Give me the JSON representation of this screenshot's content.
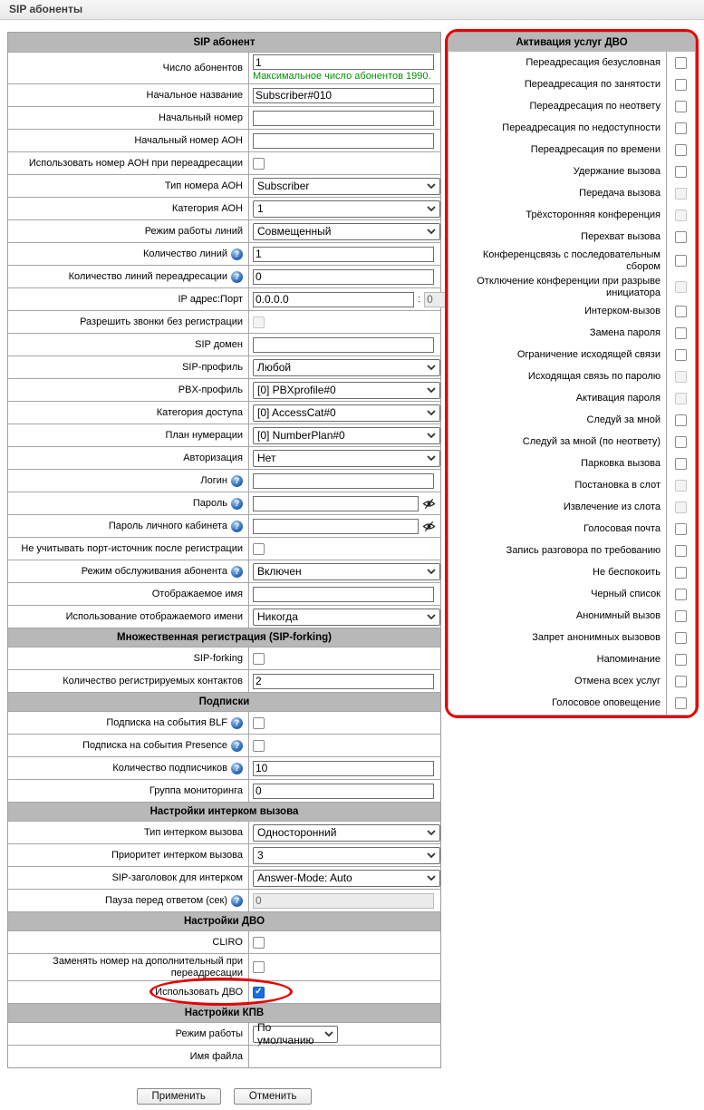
{
  "page_title": "SIP абоненты",
  "colors": {
    "section_header_bg": "#b8b8b8",
    "highlight_red": "#e60000",
    "checkbox_checked_blue": "#1b6ce0",
    "note_green": "#009000"
  },
  "icons": {
    "help_icon": "blue circle with question mark",
    "eye_slash_icon": "eye with slash (password visibility)",
    "chevron_down_icon": "select dropdown arrow"
  },
  "left_panel": {
    "rows": [
      {
        "kind": "section",
        "label": "SIP абонент"
      },
      {
        "kind": "row",
        "label": "Число абонентов",
        "control": "text",
        "value": "1",
        "note": "Максимальное число абонентов 1990."
      },
      {
        "kind": "row",
        "label": "Начальное название",
        "control": "text",
        "value": "Subscriber#010"
      },
      {
        "kind": "row",
        "label": "Начальный номер",
        "control": "text",
        "value": ""
      },
      {
        "kind": "row",
        "label": "Начальный номер АОН",
        "control": "text",
        "value": ""
      },
      {
        "kind": "row",
        "label": "Использовать номер АОН при переадресации",
        "control": "checkbox",
        "checked": false
      },
      {
        "kind": "row",
        "label": "Тип номера АОН",
        "control": "select",
        "value": "Subscriber"
      },
      {
        "kind": "row",
        "label": "Категория АОН",
        "control": "select",
        "value": "1"
      },
      {
        "kind": "row",
        "label": "Режим работы линий",
        "control": "select",
        "value": "Совмещенный"
      },
      {
        "kind": "row",
        "label": "Количество линий",
        "help": true,
        "control": "text",
        "value": "1"
      },
      {
        "kind": "row",
        "label": "Количество линий переадресации",
        "help": true,
        "control": "text",
        "value": "0"
      },
      {
        "kind": "row",
        "label": "IP адрес:Порт",
        "control": "ip",
        "value": "0.0.0.0",
        "separator": ":",
        "port": "0"
      },
      {
        "kind": "row",
        "label": "Разрешить звонки без регистрации",
        "control": "checkbox",
        "checked": false,
        "disabled": true
      },
      {
        "kind": "row",
        "label": "SIP домен",
        "control": "text",
        "value": ""
      },
      {
        "kind": "row",
        "label": "SIP-профиль",
        "control": "select",
        "value": "Любой"
      },
      {
        "kind": "row",
        "label": "PBX-профиль",
        "control": "select",
        "value": "[0] PBXprofile#0"
      },
      {
        "kind": "row",
        "label": "Категория доступа",
        "control": "select",
        "value": "[0] AccessCat#0"
      },
      {
        "kind": "row",
        "label": "План нумерации",
        "control": "select",
        "value": "[0] NumberPlan#0"
      },
      {
        "kind": "row",
        "label": "Авторизация",
        "control": "select",
        "value": "Нет"
      },
      {
        "kind": "row",
        "label": "Логин",
        "help": true,
        "control": "text",
        "value": ""
      },
      {
        "kind": "row",
        "label": "Пароль",
        "help": true,
        "control": "password",
        "value": ""
      },
      {
        "kind": "row",
        "label": "Пароль личного кабинета",
        "help": true,
        "control": "password",
        "value": ""
      },
      {
        "kind": "row",
        "label": "Не учитывать порт-источник после регистрации",
        "control": "checkbox",
        "checked": false
      },
      {
        "kind": "row",
        "label": "Режим обслуживания абонента",
        "help": true,
        "control": "select",
        "value": "Включен"
      },
      {
        "kind": "row",
        "label": "Отображаемое имя",
        "control": "text",
        "value": ""
      },
      {
        "kind": "row",
        "label": "Использование отображаемого имени",
        "control": "select",
        "value": "Никогда"
      },
      {
        "kind": "section",
        "label": "Множественная регистрация (SIP-forking)"
      },
      {
        "kind": "row",
        "label": "SIP-forking",
        "control": "checkbox",
        "checked": false
      },
      {
        "kind": "row",
        "label": "Количество регистрируемых контактов",
        "control": "text",
        "value": "2"
      },
      {
        "kind": "section",
        "label": "Подписки"
      },
      {
        "kind": "row",
        "label": "Подписка на события BLF",
        "help": true,
        "control": "checkbox",
        "checked": false
      },
      {
        "kind": "row",
        "label": "Подписка на события Presence",
        "help": true,
        "control": "checkbox",
        "checked": false
      },
      {
        "kind": "row",
        "label": "Количество подписчиков",
        "help": true,
        "control": "text",
        "value": "10"
      },
      {
        "kind": "row",
        "label": "Группа мониторинга",
        "control": "text",
        "value": "0"
      },
      {
        "kind": "section",
        "label": "Настройки интерком вызова"
      },
      {
        "kind": "row",
        "label": "Тип интерком вызова",
        "control": "select",
        "value": "Односторонний"
      },
      {
        "kind": "row",
        "label": "Приоритет интерком вызова",
        "control": "select",
        "value": "3"
      },
      {
        "kind": "row",
        "label": "SIP-заголовок для интерком",
        "control": "select",
        "value": "Answer-Mode: Auto"
      },
      {
        "kind": "row",
        "label": "Пауза перед ответом (сек)",
        "help": true,
        "control": "text",
        "value": "0",
        "disabled": true
      },
      {
        "kind": "section",
        "label": "Настройки ДВО"
      },
      {
        "kind": "row",
        "label": "CLIRO",
        "control": "checkbox",
        "checked": false
      },
      {
        "kind": "row",
        "label": "Заменять номер на дополнительный при переадресации",
        "control": "checkbox",
        "checked": false
      },
      {
        "kind": "row",
        "label": "Использовать ДВО",
        "control": "checkbox",
        "checked": true,
        "highlight": true
      },
      {
        "kind": "section",
        "label": "Настройки КПВ"
      },
      {
        "kind": "row",
        "label": "Режим работы",
        "control": "select",
        "value": "По умолчанию",
        "narrow": true
      },
      {
        "kind": "row",
        "label": "Имя файла",
        "control": "none"
      }
    ]
  },
  "right_panel": {
    "title": "Активация услуг ДВО",
    "items": [
      {
        "label": "Переадресация безусловная",
        "checked": false,
        "disabled": false
      },
      {
        "label": "Переадресация по занятости",
        "checked": false,
        "disabled": false
      },
      {
        "label": "Переадресация по неответу",
        "checked": false,
        "disabled": false
      },
      {
        "label": "Переадресация по недоступности",
        "checked": false,
        "disabled": false
      },
      {
        "label": "Переадресация по времени",
        "checked": false,
        "disabled": false
      },
      {
        "label": "Удержание вызова",
        "checked": false,
        "disabled": false
      },
      {
        "label": "Передача вызова",
        "checked": false,
        "disabled": true
      },
      {
        "label": "Трёхсторонняя конференция",
        "checked": false,
        "disabled": true
      },
      {
        "label": "Перехват вызова",
        "checked": false,
        "disabled": false
      },
      {
        "label": "Конференцсвязь с последовательным сбором",
        "checked": false,
        "disabled": false
      },
      {
        "label": "Отключение конференции при разрыве инициатора",
        "checked": false,
        "disabled": true
      },
      {
        "label": "Интерком-вызов",
        "checked": false,
        "disabled": false
      },
      {
        "label": "Замена пароля",
        "checked": false,
        "disabled": false
      },
      {
        "label": "Ограничение исходящей связи",
        "checked": false,
        "disabled": false
      },
      {
        "label": "Исходящая связь по паролю",
        "checked": false,
        "disabled": true
      },
      {
        "label": "Активация пароля",
        "checked": false,
        "disabled": true
      },
      {
        "label": "Следуй за мной",
        "checked": false,
        "disabled": false
      },
      {
        "label": "Следуй за мной (по неответу)",
        "checked": false,
        "disabled": false
      },
      {
        "label": "Парковка вызова",
        "checked": false,
        "disabled": false
      },
      {
        "label": "Постановка в слот",
        "checked": false,
        "disabled": true
      },
      {
        "label": "Извлечение из слота",
        "checked": false,
        "disabled": true
      },
      {
        "label": "Голосовая почта",
        "checked": false,
        "disabled": false
      },
      {
        "label": "Запись разговора по требованию",
        "checked": false,
        "disabled": false
      },
      {
        "label": "Не беспокоить",
        "checked": false,
        "disabled": false
      },
      {
        "label": "Черный список",
        "checked": false,
        "disabled": false
      },
      {
        "label": "Анонимный вызов",
        "checked": false,
        "disabled": false
      },
      {
        "label": "Запрет анонимных вызовов",
        "checked": false,
        "disabled": false
      },
      {
        "label": "Напоминание",
        "checked": false,
        "disabled": false
      },
      {
        "label": "Отмена всех услуг",
        "checked": false,
        "disabled": false
      },
      {
        "label": "Голосовое оповещение",
        "checked": false,
        "disabled": false
      }
    ]
  },
  "buttons": {
    "apply": "Применить",
    "cancel": "Отменить"
  }
}
